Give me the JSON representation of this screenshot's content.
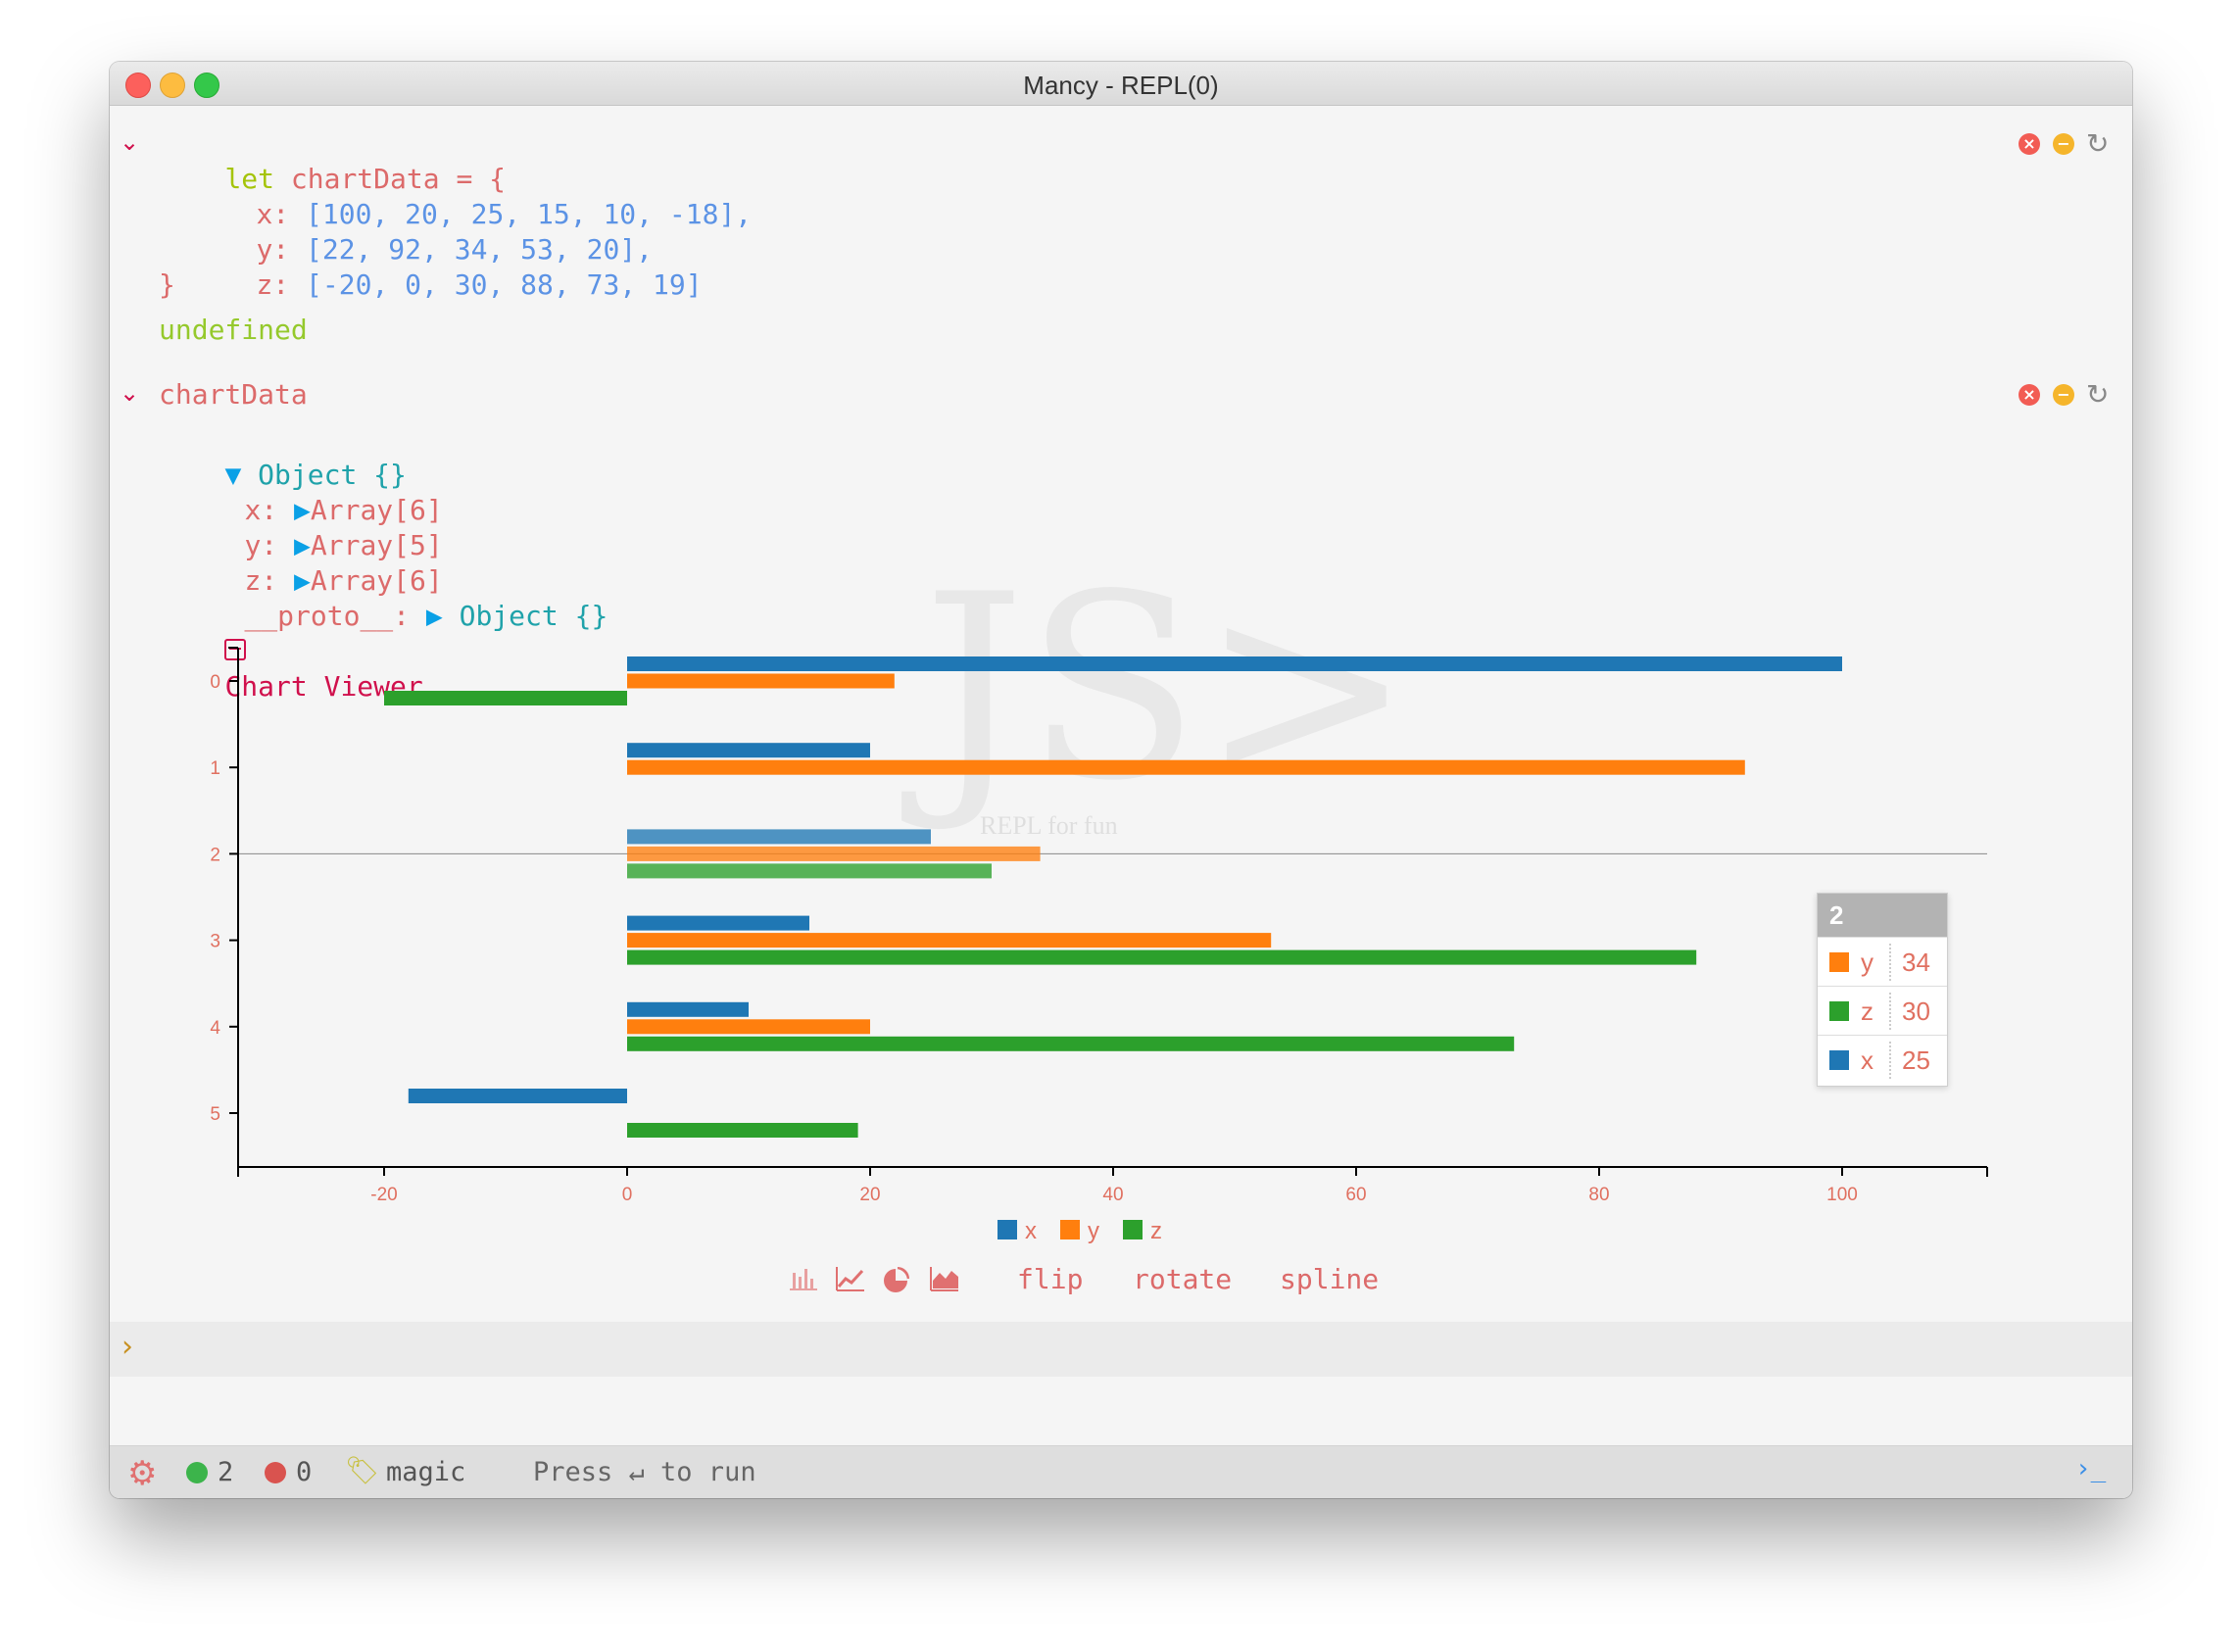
{
  "window": {
    "title": "Mancy - REPL(0)"
  },
  "cell1": {
    "lines": [
      {
        "kw": "let",
        "rest": " chartData = {"
      },
      {
        "key": "x:",
        "vals": "[100, 20, 25, 15, 10, -18],"
      },
      {
        "key": "y:",
        "vals": "[22, 92, 34, 53, 20],"
      },
      {
        "key": "z:",
        "vals": "[-20, 0, 30, 88, 73, 19]"
      },
      {
        "close": "}"
      }
    ],
    "output": "undefined"
  },
  "cell2": {
    "input": "chartData",
    "object_label": "Object {}",
    "props": [
      {
        "key": "x:",
        "val": "Array[6]"
      },
      {
        "key": "y:",
        "val": "Array[5]"
      },
      {
        "key": "z:",
        "val": "Array[6]"
      }
    ],
    "proto_key": "__proto__:",
    "proto_val": "Object {}",
    "chart_viewer_label": "Chart Viewer"
  },
  "watermark": {
    "logo": "JS>",
    "tagline": "REPL for fun"
  },
  "colors": {
    "x": "#1f77b4",
    "y": "#ff7f0e",
    "z": "#2ca02c"
  },
  "chart_data": {
    "type": "bar",
    "orientation": "horizontal (rotated)",
    "categories": [
      "0",
      "1",
      "2",
      "3",
      "4",
      "5"
    ],
    "series": [
      {
        "name": "x",
        "values": [
          100,
          20,
          25,
          15,
          10,
          -18
        ]
      },
      {
        "name": "y",
        "values": [
          22,
          92,
          34,
          53,
          20,
          null
        ]
      },
      {
        "name": "z",
        "values": [
          -20,
          0,
          30,
          88,
          73,
          19
        ]
      }
    ],
    "xlim": [
      -32,
      112
    ],
    "xticks": [
      -20,
      0,
      20,
      40,
      60,
      80,
      100
    ],
    "highlighted_category": "2",
    "legend": [
      "x",
      "y",
      "z"
    ],
    "legend_position": "bottom-center"
  },
  "tooltip": {
    "title": "2",
    "rows": [
      {
        "name": "y",
        "value": "34",
        "color": "#ff7f0e"
      },
      {
        "name": "z",
        "value": "30",
        "color": "#2ca02c"
      },
      {
        "name": "x",
        "value": "25",
        "color": "#1f77b4"
      }
    ]
  },
  "chart_controls": {
    "icons": [
      "bar-chart-icon",
      "line-chart-icon",
      "pie-chart-icon",
      "area-chart-icon"
    ],
    "flip": {
      "label": "flip",
      "checked": false
    },
    "rotate": {
      "label": "rotate",
      "checked": true
    },
    "spline": {
      "label": "spline",
      "checked": false
    }
  },
  "prompt": {
    "symbol": "›"
  },
  "status": {
    "success_count": "2",
    "error_count": "0",
    "mode": "magic",
    "hint": "Press ↵ to run",
    "terminal_symbol": "›_"
  }
}
